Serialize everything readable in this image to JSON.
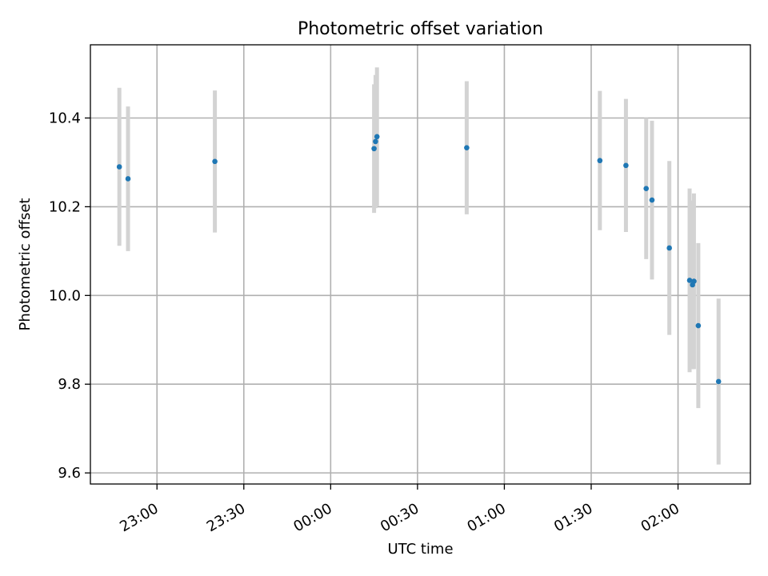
{
  "chart_data": {
    "type": "scatter",
    "title": "Photometric offset variation",
    "xlabel": "UTC time",
    "ylabel": "Photometric offset",
    "xlim": [
      "22:37:00",
      "02:25:00"
    ],
    "ylim": [
      9.575,
      10.565
    ],
    "grid": true,
    "xticks": [
      {
        "time": "23:00",
        "label": "23:00"
      },
      {
        "time": "23:30",
        "label": "23:30"
      },
      {
        "time": "00:00",
        "label": "00:00"
      },
      {
        "time": "00:30",
        "label": "00:30"
      },
      {
        "time": "01:00",
        "label": "01:00"
      },
      {
        "time": "01:30",
        "label": "01:30"
      },
      {
        "time": "02:00",
        "label": "02:00"
      }
    ],
    "yticks": [
      9.6,
      9.8,
      10.0,
      10.2,
      10.4
    ],
    "ytick_labels": [
      "9.6",
      "9.8",
      "10.0",
      "10.2",
      "10.4"
    ],
    "marker_color": "#1f77b4",
    "errorbar_color": "#d3d3d3",
    "points": [
      {
        "time": "22:47",
        "y": 10.29,
        "yerr": 0.178
      },
      {
        "time": "22:50",
        "y": 10.263,
        "yerr": 0.163
      },
      {
        "time": "23:20",
        "y": 10.302,
        "yerr": 0.16
      },
      {
        "time": "00:15",
        "y": 10.331,
        "yerr": 0.145
      },
      {
        "time": "00:15:30",
        "y": 10.347,
        "yerr": 0.15
      },
      {
        "time": "00:16",
        "y": 10.358,
        "yerr": 0.156
      },
      {
        "time": "00:47",
        "y": 10.333,
        "yerr": 0.15
      },
      {
        "time": "01:33",
        "y": 10.304,
        "yerr": 0.157
      },
      {
        "time": "01:42",
        "y": 10.293,
        "yerr": 0.15
      },
      {
        "time": "01:49",
        "y": 10.241,
        "yerr": 0.159
      },
      {
        "time": "01:51",
        "y": 10.215,
        "yerr": 0.179
      },
      {
        "time": "01:57",
        "y": 10.107,
        "yerr": 0.196
      },
      {
        "time": "02:04",
        "y": 10.034,
        "yerr": 0.207
      },
      {
        "time": "02:05",
        "y": 10.024,
        "yerr": 0.19
      },
      {
        "time": "02:05:30",
        "y": 10.032,
        "yerr": 0.198
      },
      {
        "time": "02:07",
        "y": 9.932,
        "yerr": 0.186
      },
      {
        "time": "02:14",
        "y": 9.806,
        "yerr": 0.187
      }
    ]
  }
}
